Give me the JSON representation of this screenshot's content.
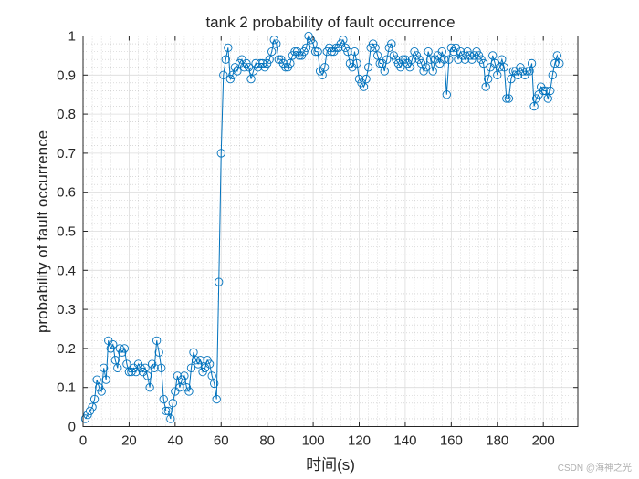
{
  "chart_data": {
    "type": "line",
    "title": "tank 2 probability of fault occurrence",
    "xlabel": "时间(s)",
    "ylabel": "probability of fault occurrence",
    "xlim": [
      0,
      215
    ],
    "ylim": [
      0,
      1
    ],
    "xticks": [
      0,
      20,
      40,
      60,
      80,
      100,
      120,
      140,
      160,
      180,
      200
    ],
    "yticks": [
      0,
      0.1,
      0.2,
      0.3,
      0.4,
      0.5,
      0.6,
      0.7,
      0.8,
      0.9,
      1
    ],
    "xtick_labels": [
      "0",
      "20",
      "40",
      "60",
      "80",
      "100",
      "120",
      "140",
      "160",
      "180",
      "200"
    ],
    "ytick_labels": [
      "0",
      "0.1",
      "0.2",
      "0.3",
      "0.4",
      "0.5",
      "0.6",
      "0.7",
      "0.8",
      "0.9",
      "1"
    ],
    "grid": true,
    "minor_grid": true,
    "marker": "circle",
    "series": [
      {
        "name": "tank 2",
        "color": "#0072BD",
        "x_start": 1,
        "x_step": 1,
        "values": [
          0.02,
          0.03,
          0.04,
          0.05,
          0.07,
          0.12,
          0.1,
          0.09,
          0.15,
          0.12,
          0.22,
          0.2,
          0.21,
          0.17,
          0.15,
          0.2,
          0.19,
          0.2,
          0.16,
          0.14,
          0.14,
          0.15,
          0.14,
          0.16,
          0.15,
          0.14,
          0.15,
          0.13,
          0.1,
          0.16,
          0.15,
          0.22,
          0.19,
          0.15,
          0.07,
          0.04,
          0.04,
          0.02,
          0.06,
          0.09,
          0.13,
          0.1,
          0.12,
          0.13,
          0.1,
          0.09,
          0.15,
          0.19,
          0.17,
          0.16,
          0.17,
          0.14,
          0.15,
          0.17,
          0.16,
          0.13,
          0.11,
          0.07,
          0.37,
          0.7,
          0.9,
          0.94,
          0.97,
          0.89,
          0.9,
          0.92,
          0.91,
          0.93,
          0.94,
          0.92,
          0.93,
          0.92,
          0.89,
          0.91,
          0.93,
          0.92,
          0.93,
          0.93,
          0.92,
          0.93,
          0.94,
          0.96,
          0.99,
          0.98,
          0.94,
          0.94,
          0.93,
          0.92,
          0.92,
          0.93,
          0.95,
          0.96,
          0.96,
          0.95,
          0.95,
          0.96,
          0.97,
          1.0,
          0.99,
          0.98,
          0.96,
          0.96,
          0.91,
          0.9,
          0.92,
          0.96,
          0.97,
          0.96,
          0.96,
          0.97,
          0.97,
          0.98,
          0.99,
          0.97,
          0.96,
          0.93,
          0.92,
          0.96,
          0.93,
          0.89,
          0.88,
          0.87,
          0.89,
          0.92,
          0.97,
          0.98,
          0.97,
          0.95,
          0.93,
          0.93,
          0.91,
          0.94,
          0.97,
          0.98,
          0.95,
          0.94,
          0.93,
          0.92,
          0.94,
          0.94,
          0.93,
          0.92,
          0.94,
          0.96,
          0.95,
          0.94,
          0.93,
          0.91,
          0.92,
          0.96,
          0.94,
          0.91,
          0.94,
          0.95,
          0.93,
          0.96,
          0.94,
          0.85,
          0.94,
          0.97,
          0.96,
          0.97,
          0.94,
          0.96,
          0.95,
          0.94,
          0.96,
          0.95,
          0.94,
          0.95,
          0.96,
          0.95,
          0.94,
          0.93,
          0.87,
          0.89,
          0.92,
          0.95,
          0.93,
          0.9,
          0.92,
          0.94,
          0.92,
          0.84,
          0.84,
          0.89,
          0.91,
          0.91,
          0.9,
          0.92,
          0.91,
          0.9,
          0.91,
          0.91,
          0.93,
          0.82,
          0.84,
          0.85,
          0.87,
          0.86,
          0.86,
          0.84,
          0.86,
          0.9,
          0.93,
          0.95,
          0.93
        ]
      }
    ]
  },
  "watermark": "CSDN @海神之光"
}
